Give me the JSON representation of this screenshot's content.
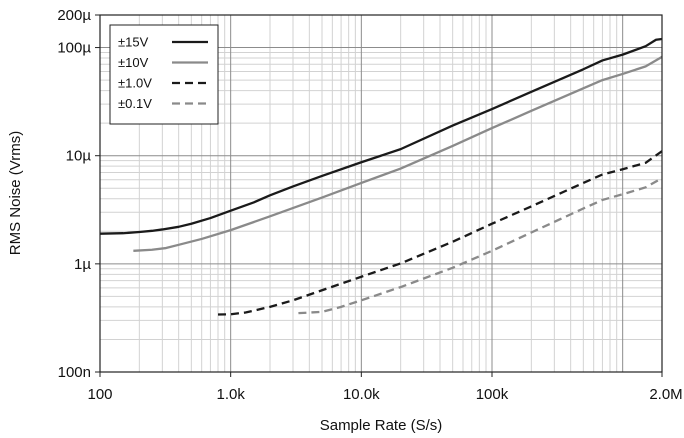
{
  "chart_data": {
    "type": "line",
    "xlabel": "Sample Rate (S/s)",
    "ylabel": "RMS Noise (Vrms)",
    "x_scale": "log",
    "y_scale": "log",
    "xlim": [
      100,
      2000000
    ],
    "ylim": [
      1e-07,
      0.0002
    ],
    "grid": true,
    "legend_position": "top-left",
    "x_ticks": [
      {
        "value": 100,
        "label": "100"
      },
      {
        "value": 1000,
        "label": "1.0k"
      },
      {
        "value": 10000,
        "label": "10.0k"
      },
      {
        "value": 100000,
        "label": "100k"
      },
      {
        "value": 2000000,
        "label": "2.0M"
      }
    ],
    "y_ticks": [
      {
        "value": 1e-07,
        "label": "100n"
      },
      {
        "value": 1e-06,
        "label": "1µ"
      },
      {
        "value": 1e-05,
        "label": "10µ"
      },
      {
        "value": 0.0001,
        "label": "100µ"
      },
      {
        "value": 0.0002,
        "label": "200µ"
      }
    ],
    "series": [
      {
        "name": "±15V",
        "color": "#1a1a1a",
        "dash": "solid",
        "points": [
          [
            100,
            1.9e-06
          ],
          [
            150,
            1.92e-06
          ],
          [
            200,
            1.97e-06
          ],
          [
            250,
            2.02e-06
          ],
          [
            300,
            2.08e-06
          ],
          [
            400,
            2.2e-06
          ],
          [
            500,
            2.35e-06
          ],
          [
            700,
            2.65e-06
          ],
          [
            1000,
            3.1e-06
          ],
          [
            1500,
            3.7e-06
          ],
          [
            2000,
            4.3e-06
          ],
          [
            3000,
            5.2e-06
          ],
          [
            5000,
            6.5e-06
          ],
          [
            10000,
            8.7e-06
          ],
          [
            20000,
            1.15e-05
          ],
          [
            50000,
            1.9e-05
          ],
          [
            100000,
            2.7e-05
          ],
          [
            200000,
            3.9e-05
          ],
          [
            500000,
            6.3e-05
          ],
          [
            700000,
            7.6e-05
          ],
          [
            1000000,
            8.6e-05
          ],
          [
            1500000,
            0.000103
          ],
          [
            1800000,
            0.000118
          ],
          [
            2000000,
            0.00012
          ]
        ]
      },
      {
        "name": "±10V",
        "color": "#8a8a8a",
        "dash": "solid",
        "points": [
          [
            180,
            1.32e-06
          ],
          [
            250,
            1.35e-06
          ],
          [
            320,
            1.4e-06
          ],
          [
            400,
            1.5e-06
          ],
          [
            600,
            1.7e-06
          ],
          [
            1000,
            2.05e-06
          ],
          [
            2000,
            2.75e-06
          ],
          [
            5000,
            4.1e-06
          ],
          [
            10000,
            5.6e-06
          ],
          [
            20000,
            7.6e-06
          ],
          [
            50000,
            1.23e-05
          ],
          [
            100000,
            1.8e-05
          ],
          [
            200000,
            2.6e-05
          ],
          [
            500000,
            4.2e-05
          ],
          [
            700000,
            5e-05
          ],
          [
            1000000,
            5.7e-05
          ],
          [
            1500000,
            6.7e-05
          ],
          [
            2000000,
            8.2e-05
          ]
        ]
      },
      {
        "name": "±1.0V",
        "color": "#1a1a1a",
        "dash": "dashed",
        "points": [
          [
            800,
            3.4e-07
          ],
          [
            1000,
            3.42e-07
          ],
          [
            1300,
            3.55e-07
          ],
          [
            2000,
            4e-07
          ],
          [
            3000,
            4.6e-07
          ],
          [
            5000,
            5.7e-07
          ],
          [
            10000,
            7.6e-07
          ],
          [
            20000,
            1.01e-06
          ],
          [
            50000,
            1.6e-06
          ],
          [
            100000,
            2.35e-06
          ],
          [
            200000,
            3.4e-06
          ],
          [
            500000,
            5.6e-06
          ],
          [
            700000,
            6.7e-06
          ],
          [
            1000000,
            7.5e-06
          ],
          [
            1500000,
            8.6e-06
          ],
          [
            2000000,
            1.1e-05
          ]
        ]
      },
      {
        "name": "±0.1V",
        "color": "#8a8a8a",
        "dash": "dashed",
        "points": [
          [
            3300,
            3.5e-07
          ],
          [
            5000,
            3.6e-07
          ],
          [
            7000,
            4e-07
          ],
          [
            10000,
            4.6e-07
          ],
          [
            20000,
            6.1e-07
          ],
          [
            50000,
            9.2e-07
          ],
          [
            100000,
            1.32e-06
          ],
          [
            200000,
            1.95e-06
          ],
          [
            500000,
            3.25e-06
          ],
          [
            700000,
            3.9e-06
          ],
          [
            1000000,
            4.4e-06
          ],
          [
            1500000,
            5.1e-06
          ],
          [
            2000000,
            6.2e-06
          ]
        ]
      }
    ]
  }
}
